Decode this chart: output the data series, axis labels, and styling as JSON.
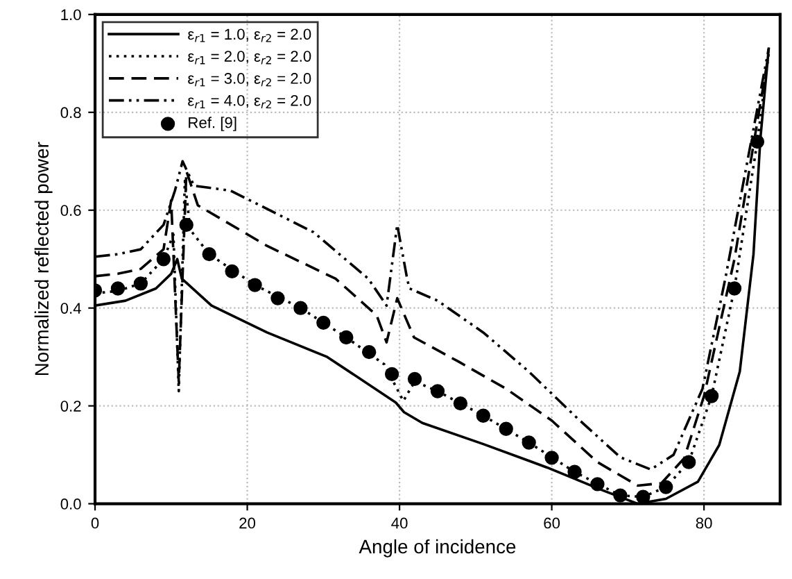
{
  "chart_data": {
    "type": "line",
    "xlabel": "Angle of incidence",
    "ylabel": "Normalized reflected power",
    "xlim": [
      0,
      90
    ],
    "ylim": [
      0,
      1
    ],
    "xticks": [
      0,
      20,
      40,
      60,
      80
    ],
    "yticks": [
      {
        "value": 0,
        "label": "0.0"
      },
      {
        "value": 0.2,
        "label": "0.2"
      },
      {
        "value": 0.4,
        "label": "0.4"
      },
      {
        "value": 0.6,
        "label": "0.6"
      },
      {
        "value": 0.8,
        "label": "0.8"
      },
      {
        "value": 1,
        "label": "1.0"
      }
    ],
    "grid": true,
    "legend": "top left",
    "series": [
      {
        "name": "ε$_{r1}$ = 1.0, ε$_{r2}$ = 2.0",
        "color": "#000000",
        "line_style": "solid",
        "marker": "none",
        "x": [
          0,
          4,
          8,
          10,
          10.8,
          11.4,
          15.3,
          22.6,
          30.5,
          39.5,
          40.6,
          43,
          51,
          59.4,
          66.6,
          71.3,
          75,
          79.2,
          82,
          84.7,
          86.5,
          87.4,
          88.5
        ],
        "values": [
          0.405,
          0.415,
          0.44,
          0.47,
          0.5,
          0.46,
          0.405,
          0.35,
          0.3,
          0.207,
          0.187,
          0.165,
          0.122,
          0.074,
          0.028,
          0,
          0.01,
          0.045,
          0.12,
          0.27,
          0.51,
          0.745,
          0.93
        ]
      },
      {
        "name": "ε$_{r1}$ = 2.0, ε$_{r2}$ = 2.0",
        "color": "#000000",
        "line_style": "dotted",
        "marker": "none",
        "x": [
          0,
          3,
          6,
          9,
          10.3,
          11,
          11.8,
          12.5,
          15,
          21,
          27,
          33,
          38,
          40.5,
          42,
          45,
          51,
          57,
          63,
          69,
          72,
          75,
          78,
          81,
          84,
          87,
          88.5
        ],
        "values": [
          0.43,
          0.435,
          0.45,
          0.5,
          0.55,
          0.23,
          0.66,
          0.56,
          0.51,
          0.447,
          0.4,
          0.34,
          0.285,
          0.21,
          0.25,
          0.23,
          0.18,
          0.125,
          0.065,
          0.017,
          0.014,
          0.034,
          0.085,
          0.22,
          0.44,
          0.74,
          0.92
        ]
      },
      {
        "name": "ε$_{r1}$ = 3.0, ε$_{r2}$ = 2.0",
        "color": "#000000",
        "line_style": "dashed",
        "marker": "none",
        "x": [
          0,
          3,
          6,
          9,
          10,
          11,
          12,
          13.5,
          22.6,
          31.6,
          37,
          38.3,
          39.7,
          41.9,
          47.8,
          54,
          60,
          66,
          71.3,
          74.4,
          77.4,
          80,
          84,
          88.5
        ],
        "values": [
          0.465,
          0.47,
          0.48,
          0.52,
          0.62,
          0.25,
          0.68,
          0.61,
          0.527,
          0.46,
          0.385,
          0.33,
          0.42,
          0.34,
          0.29,
          0.235,
          0.17,
          0.085,
          0.037,
          0.042,
          0.093,
          0.22,
          0.5,
          0.92
        ]
      },
      {
        "name": "ε$_{r1}$ = 4.0, ε$_{r2}$ = 2.0",
        "color": "#000000",
        "line_style": "dashdotdot",
        "marker": "none",
        "x": [
          0,
          3,
          6,
          9,
          10.5,
          11.5,
          13,
          17.8,
          28.7,
          35.9,
          38.3,
          39.7,
          41,
          41.3,
          45,
          51,
          57,
          63,
          69,
          73,
          76,
          79.8,
          82.8,
          85.7,
          88.5
        ],
        "values": [
          0.505,
          0.51,
          0.52,
          0.57,
          0.64,
          0.7,
          0.65,
          0.64,
          0.555,
          0.46,
          0.405,
          0.57,
          0.46,
          0.44,
          0.415,
          0.35,
          0.27,
          0.18,
          0.095,
          0.07,
          0.1,
          0.235,
          0.46,
          0.7,
          0.93
        ]
      },
      {
        "name": "Ref. [9]",
        "type": "scatter",
        "color": "#000000",
        "marker": "circle",
        "x": [
          0,
          3,
          6,
          9,
          12,
          15,
          18,
          21,
          24,
          27,
          30,
          33,
          36,
          39,
          42,
          45,
          48,
          51,
          54,
          57,
          60,
          63,
          66,
          69,
          72,
          75,
          78,
          81,
          84,
          87
        ],
        "values": [
          0.436,
          0.44,
          0.45,
          0.5,
          0.57,
          0.51,
          0.475,
          0.447,
          0.42,
          0.4,
          0.37,
          0.34,
          0.31,
          0.265,
          0.255,
          0.23,
          0.205,
          0.18,
          0.153,
          0.125,
          0.094,
          0.065,
          0.04,
          0.017,
          0.014,
          0.034,
          0.085,
          0.22,
          0.44,
          0.74
        ]
      }
    ]
  }
}
